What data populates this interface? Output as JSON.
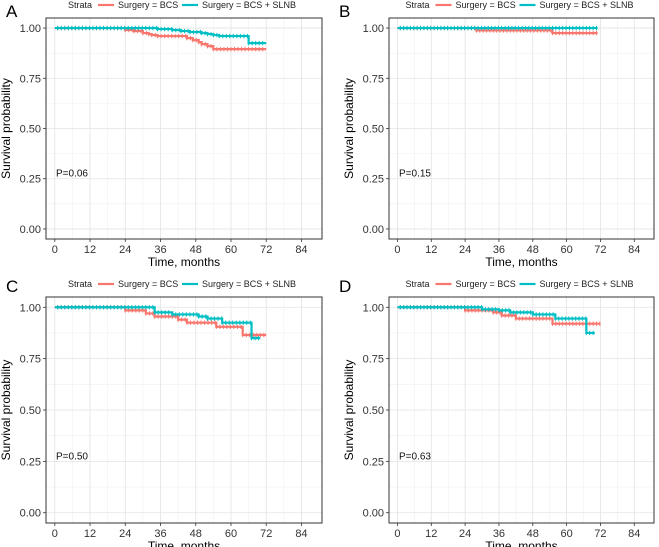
{
  "chart_data": [
    {
      "panel": "A",
      "type": "line",
      "title": "",
      "legend_title": "Strata",
      "legend_position": "top",
      "xlabel": "Time, months",
      "ylabel": "Survival probability",
      "xlim": [
        -3,
        91
      ],
      "ylim": [
        -0.05,
        1.05
      ],
      "xticks": [
        0,
        12,
        24,
        36,
        48,
        60,
        72,
        84
      ],
      "yticks": [
        0.0,
        0.25,
        0.5,
        0.75,
        1.0
      ],
      "ytick_labels": [
        "0.00",
        "0.25",
        "0.50",
        "0.75",
        "1.00"
      ],
      "grid": true,
      "annotation": "P=0.06",
      "series": [
        {
          "name": "Surgery = BCS",
          "color": "#F8766D",
          "step_times": [
            0,
            24,
            27,
            30,
            32,
            33,
            35,
            45,
            47,
            49,
            50,
            52,
            54,
            72
          ],
          "step_survival": [
            1.0,
            0.99,
            0.985,
            0.975,
            0.97,
            0.965,
            0.96,
            0.95,
            0.94,
            0.93,
            0.92,
            0.91,
            0.895,
            0.895
          ]
        },
        {
          "name": "Surgery = BCS + SLNB",
          "color": "#00BFC4",
          "step_times": [
            0,
            35,
            40,
            43,
            46,
            50,
            52,
            54,
            56,
            66,
            72
          ],
          "step_survival": [
            1.0,
            0.995,
            0.99,
            0.985,
            0.98,
            0.975,
            0.97,
            0.965,
            0.96,
            0.925,
            0.925
          ]
        }
      ]
    },
    {
      "panel": "B",
      "type": "line",
      "title": "",
      "legend_title": "Strata",
      "legend_position": "top",
      "xlabel": "Time, months",
      "ylabel": "Survival probability",
      "xlim": [
        -3,
        91
      ],
      "ylim": [
        -0.05,
        1.05
      ],
      "xticks": [
        0,
        12,
        24,
        36,
        48,
        60,
        72,
        84
      ],
      "yticks": [
        0.0,
        0.25,
        0.5,
        0.75,
        1.0
      ],
      "ytick_labels": [
        "0.00",
        "0.25",
        "0.50",
        "0.75",
        "1.00"
      ],
      "grid": true,
      "annotation": "P=0.15",
      "series": [
        {
          "name": "Surgery = BCS",
          "color": "#F8766D",
          "step_times": [
            0,
            28,
            55,
            71
          ],
          "step_survival": [
            1.0,
            0.988,
            0.975,
            0.975
          ]
        },
        {
          "name": "Surgery = BCS + SLNB",
          "color": "#00BFC4",
          "step_times": [
            0,
            71
          ],
          "step_survival": [
            1.0,
            1.0
          ]
        }
      ]
    },
    {
      "panel": "C",
      "type": "line",
      "title": "",
      "legend_title": "Strata",
      "legend_position": "top",
      "xlabel": "Time, months",
      "ylabel": "Survival probability",
      "xlim": [
        -3,
        91
      ],
      "ylim": [
        -0.05,
        1.05
      ],
      "xticks": [
        0,
        12,
        24,
        36,
        48,
        60,
        72,
        84
      ],
      "yticks": [
        0.0,
        0.25,
        0.5,
        0.75,
        1.0
      ],
      "ytick_labels": [
        "0.00",
        "0.25",
        "0.50",
        "0.75",
        "1.00"
      ],
      "grid": true,
      "annotation": "P=0.50",
      "series": [
        {
          "name": "Surgery = BCS",
          "color": "#F8766D",
          "step_times": [
            0,
            24,
            31,
            34,
            42,
            45,
            55,
            64,
            72
          ],
          "step_survival": [
            1.0,
            0.985,
            0.97,
            0.955,
            0.94,
            0.925,
            0.905,
            0.865,
            0.865
          ]
        },
        {
          "name": "Surgery = BCS + SLNB",
          "color": "#00BFC4",
          "step_times": [
            0,
            34,
            40,
            49,
            52,
            57,
            67,
            70
          ],
          "step_survival": [
            1.0,
            0.975,
            0.965,
            0.955,
            0.945,
            0.925,
            0.85,
            0.85
          ]
        }
      ]
    },
    {
      "panel": "D",
      "type": "line",
      "title": "",
      "legend_title": "Strata",
      "legend_position": "top",
      "xlabel": "Time, months",
      "ylabel": "Survival probability",
      "xlim": [
        -3,
        91
      ],
      "ylim": [
        -0.05,
        1.05
      ],
      "xticks": [
        0,
        12,
        24,
        36,
        48,
        60,
        72,
        84
      ],
      "yticks": [
        0.0,
        0.25,
        0.5,
        0.75,
        1.0
      ],
      "ytick_labels": [
        "0.00",
        "0.25",
        "0.50",
        "0.75",
        "1.00"
      ],
      "grid": true,
      "annotation": "P=0.63",
      "series": [
        {
          "name": "Surgery = BCS",
          "color": "#F8766D",
          "step_times": [
            0,
            24,
            34,
            37,
            42,
            55,
            72
          ],
          "step_survival": [
            1.0,
            0.985,
            0.975,
            0.96,
            0.945,
            0.92,
            0.92
          ]
        },
        {
          "name": "Surgery = BCS + SLNB",
          "color": "#00BFC4",
          "step_times": [
            0,
            30,
            36,
            40,
            48,
            56,
            67,
            70
          ],
          "step_survival": [
            1.0,
            0.99,
            0.985,
            0.975,
            0.965,
            0.945,
            0.875,
            0.875
          ]
        }
      ]
    }
  ]
}
